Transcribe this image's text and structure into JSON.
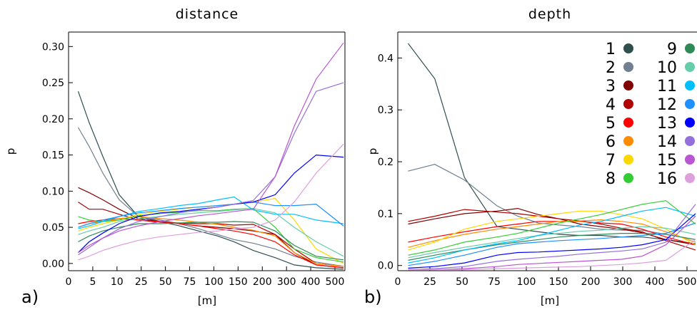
{
  "chart_data": [
    {
      "type": "line",
      "title": "distance",
      "ylabel": "p",
      "xlabel": "[m]",
      "panel_label": "a)",
      "ylim": [
        -0.01,
        0.32
      ],
      "yticks": [
        "0.00",
        "0.05",
        "0.10",
        "0.15",
        "0.20",
        "0.25",
        "0.30"
      ],
      "ytick_values": [
        0.0,
        0.05,
        0.1,
        0.15,
        0.2,
        0.25,
        0.3
      ],
      "xticks": [
        "0",
        "5",
        "10",
        "25",
        "50",
        "75",
        "100",
        "150",
        "200",
        "300",
        "400",
        "500"
      ],
      "x_positions": [
        3,
        7,
        12,
        18,
        25,
        33,
        40,
        47,
        54,
        60,
        67,
        75,
        82,
        90,
        100
      ],
      "series": [
        {
          "name": "1",
          "color": "#2f4f4f",
          "values": [
            0.238,
            0.195,
            0.148,
            0.095,
            0.065,
            0.058,
            0.052,
            0.045,
            0.038,
            0.03,
            0.018,
            0.008,
            -0.002,
            -0.006,
            -0.008
          ]
        },
        {
          "name": "2",
          "color": "#708090",
          "values": [
            0.188,
            0.162,
            0.125,
            0.088,
            0.065,
            0.06,
            0.055,
            0.048,
            0.04,
            0.033,
            0.028,
            0.02,
            0.01,
            0.002,
            -0.004
          ]
        },
        {
          "name": "3",
          "color": "#800000",
          "values": [
            0.105,
            0.098,
            0.088,
            0.075,
            0.062,
            0.058,
            0.055,
            0.052,
            0.05,
            0.048,
            0.045,
            0.04,
            0.015,
            -0.002,
            -0.006
          ]
        },
        {
          "name": "4",
          "color": "#b00000",
          "values": [
            0.085,
            0.075,
            0.075,
            0.068,
            0.06,
            0.057,
            0.056,
            0.055,
            0.055,
            0.053,
            0.054,
            0.04,
            0.02,
            0.0,
            -0.004
          ]
        },
        {
          "name": "5",
          "color": "#ff0000",
          "values": [
            0.055,
            0.058,
            0.06,
            0.062,
            0.06,
            0.058,
            0.055,
            0.052,
            0.048,
            0.045,
            0.04,
            0.03,
            0.012,
            -0.002,
            -0.006
          ]
        },
        {
          "name": "6",
          "color": "#ff8c00",
          "values": [
            0.05,
            0.055,
            0.058,
            0.062,
            0.065,
            0.062,
            0.06,
            0.057,
            0.054,
            0.05,
            0.046,
            0.038,
            0.015,
            0.0,
            -0.004
          ]
        },
        {
          "name": "7",
          "color": "#ffd700",
          "values": [
            0.045,
            0.05,
            0.055,
            0.06,
            0.068,
            0.072,
            0.075,
            0.078,
            0.08,
            0.082,
            0.085,
            0.09,
            0.06,
            0.02,
            0.0
          ]
        },
        {
          "name": "8",
          "color": "#32cd32",
          "values": [
            0.065,
            0.06,
            0.058,
            0.06,
            0.066,
            0.069,
            0.071,
            0.073,
            0.073,
            0.075,
            0.076,
            0.05,
            0.02,
            0.008,
            0.002
          ]
        },
        {
          "name": "9",
          "color": "#2e8b57",
          "values": [
            0.03,
            0.038,
            0.045,
            0.05,
            0.055,
            0.055,
            0.056,
            0.057,
            0.057,
            0.058,
            0.057,
            0.045,
            0.025,
            0.01,
            0.005
          ]
        },
        {
          "name": "10",
          "color": "#66cdaa",
          "values": [
            0.04,
            0.045,
            0.05,
            0.058,
            0.062,
            0.065,
            0.068,
            0.07,
            0.072,
            0.074,
            0.076,
            0.07,
            0.05,
            0.03,
            0.01
          ]
        },
        {
          "name": "11",
          "color": "#00bfff",
          "values": [
            0.048,
            0.052,
            0.058,
            0.065,
            0.072,
            0.076,
            0.08,
            0.083,
            0.088,
            0.092,
            0.074,
            0.068,
            0.068,
            0.06,
            0.055
          ]
        },
        {
          "name": "12",
          "color": "#1e90ff",
          "values": [
            0.05,
            0.055,
            0.06,
            0.065,
            0.07,
            0.073,
            0.076,
            0.078,
            0.08,
            0.082,
            0.085,
            0.08,
            0.08,
            0.082,
            0.052
          ]
        },
        {
          "name": "13",
          "color": "#0000ff",
          "values": [
            0.015,
            0.03,
            0.042,
            0.055,
            0.065,
            0.07,
            0.072,
            0.075,
            0.078,
            0.082,
            0.085,
            0.095,
            0.125,
            0.15,
            0.147
          ]
        },
        {
          "name": "14",
          "color": "#9370db",
          "values": [
            0.012,
            0.022,
            0.035,
            0.048,
            0.058,
            0.065,
            0.07,
            0.074,
            0.078,
            0.082,
            0.087,
            0.12,
            0.18,
            0.238,
            0.25
          ]
        },
        {
          "name": "15",
          "color": "#ba55d3",
          "values": [
            0.015,
            0.025,
            0.035,
            0.045,
            0.052,
            0.058,
            0.062,
            0.066,
            0.069,
            0.072,
            0.075,
            0.12,
            0.19,
            0.255,
            0.305
          ]
        },
        {
          "name": "16",
          "color": "#dda0dd",
          "values": [
            0.005,
            0.01,
            0.018,
            0.025,
            0.032,
            0.037,
            0.04,
            0.043,
            0.045,
            0.048,
            0.05,
            0.06,
            0.085,
            0.125,
            0.165
          ]
        }
      ]
    },
    {
      "type": "line",
      "title": "depth",
      "ylabel": "p",
      "xlabel": "[m]",
      "panel_label": "b)",
      "ylim": [
        -0.01,
        0.45
      ],
      "yticks": [
        "0.0",
        "0.1",
        "0.2",
        "0.3",
        "0.4"
      ],
      "ytick_values": [
        0.0,
        0.1,
        0.2,
        0.3,
        0.4
      ],
      "xticks": [
        "0",
        "25",
        "50",
        "75",
        "100",
        "150",
        "200",
        "300",
        "400",
        "500"
      ],
      "x_positions": [
        3,
        12,
        22,
        33,
        40,
        47,
        54,
        61,
        68,
        75,
        82,
        90,
        100
      ],
      "series": [
        {
          "name": "1",
          "color": "#2f4f4f",
          "values": [
            0.428,
            0.36,
            0.17,
            0.075,
            0.07,
            0.065,
            0.06,
            0.058,
            0.058,
            0.055,
            0.055,
            0.05,
            0.042
          ]
        },
        {
          "name": "2",
          "color": "#708090",
          "values": [
            0.182,
            0.195,
            0.165,
            0.115,
            0.095,
            0.082,
            0.078,
            0.075,
            0.07,
            0.068,
            0.068,
            0.06,
            0.05
          ]
        },
        {
          "name": "3",
          "color": "#800000",
          "values": [
            0.08,
            0.09,
            0.1,
            0.105,
            0.11,
            0.098,
            0.09,
            0.08,
            0.075,
            0.07,
            0.063,
            0.05,
            0.04
          ]
        },
        {
          "name": "4",
          "color": "#b00000",
          "values": [
            0.085,
            0.095,
            0.108,
            0.103,
            0.1,
            0.095,
            0.09,
            0.086,
            0.08,
            0.072,
            0.065,
            0.048,
            0.03
          ]
        },
        {
          "name": "5",
          "color": "#ff0000",
          "values": [
            0.045,
            0.055,
            0.065,
            0.075,
            0.08,
            0.085,
            0.085,
            0.085,
            0.082,
            0.08,
            0.07,
            0.055,
            0.04
          ]
        },
        {
          "name": "6",
          "color": "#ff8c00",
          "values": [
            0.035,
            0.048,
            0.06,
            0.07,
            0.075,
            0.08,
            0.085,
            0.086,
            0.088,
            0.085,
            0.08,
            0.065,
            0.045
          ]
        },
        {
          "name": "7",
          "color": "#ffd700",
          "values": [
            0.03,
            0.045,
            0.07,
            0.085,
            0.09,
            0.095,
            0.1,
            0.105,
            0.105,
            0.098,
            0.09,
            0.07,
            0.04
          ]
        },
        {
          "name": "8",
          "color": "#32cd32",
          "values": [
            0.02,
            0.03,
            0.045,
            0.055,
            0.062,
            0.072,
            0.082,
            0.09,
            0.098,
            0.108,
            0.118,
            0.125,
            0.08
          ]
        },
        {
          "name": "9",
          "color": "#2e8b57",
          "values": [
            0.01,
            0.02,
            0.03,
            0.04,
            0.045,
            0.05,
            0.055,
            0.058,
            0.06,
            0.062,
            0.062,
            0.06,
            0.05
          ]
        },
        {
          "name": "10",
          "color": "#66cdaa",
          "values": [
            0.015,
            0.025,
            0.035,
            0.045,
            0.052,
            0.058,
            0.062,
            0.066,
            0.068,
            0.072,
            0.075,
            0.072,
            0.06
          ]
        },
        {
          "name": "11",
          "color": "#00bfff",
          "values": [
            0.005,
            0.015,
            0.03,
            0.042,
            0.048,
            0.058,
            0.068,
            0.078,
            0.085,
            0.095,
            0.105,
            0.112,
            0.095
          ]
        },
        {
          "name": "12",
          "color": "#1e90ff",
          "values": [
            0.0,
            0.008,
            0.02,
            0.035,
            0.042,
            0.045,
            0.048,
            0.05,
            0.052,
            0.055,
            0.058,
            0.062,
            0.082
          ]
        },
        {
          "name": "13",
          "color": "#0000ff",
          "values": [
            -0.005,
            -0.002,
            0.005,
            0.02,
            0.025,
            0.026,
            0.028,
            0.03,
            0.032,
            0.035,
            0.04,
            0.05,
            0.1
          ]
        },
        {
          "name": "14",
          "color": "#9370db",
          "values": [
            -0.008,
            -0.006,
            -0.002,
            0.008,
            0.012,
            0.015,
            0.018,
            0.022,
            0.025,
            0.028,
            0.032,
            0.045,
            0.118
          ]
        },
        {
          "name": "15",
          "color": "#ba55d3",
          "values": [
            -0.008,
            -0.008,
            -0.006,
            -0.002,
            0.002,
            0.004,
            0.006,
            0.008,
            0.01,
            0.012,
            0.018,
            0.04,
            0.095
          ]
        },
        {
          "name": "16",
          "color": "#dda0dd",
          "values": [
            -0.008,
            -0.008,
            -0.008,
            -0.006,
            -0.005,
            -0.004,
            -0.003,
            -0.002,
            0.0,
            0.002,
            0.005,
            0.01,
            0.05
          ]
        }
      ]
    }
  ]
}
